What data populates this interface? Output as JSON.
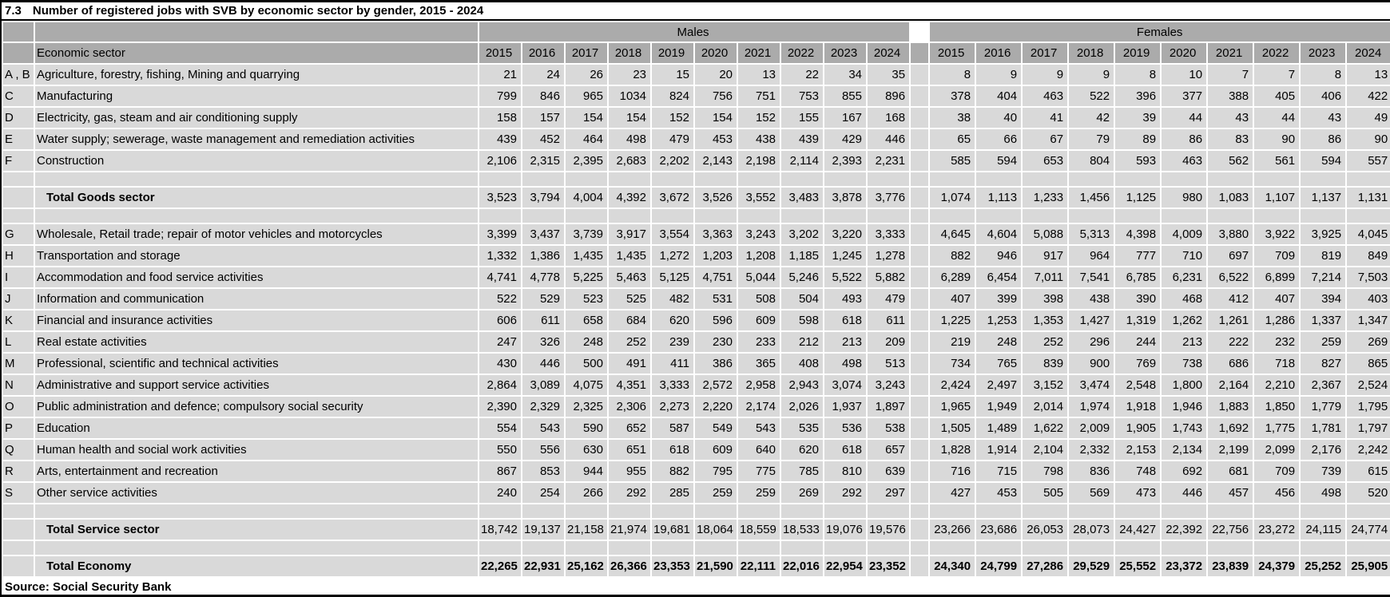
{
  "title": {
    "number": "7.3",
    "text": "Number of registered jobs with SVB by economic sector by gender, 2015 - 2024"
  },
  "source": "Source: Social Security Bank",
  "table": {
    "group_headers": {
      "males": "Males",
      "females": "Females"
    },
    "economic_sector_header": "Economic sector",
    "years": [
      "2015",
      "2016",
      "2017",
      "2018",
      "2019",
      "2020",
      "2021",
      "2022",
      "2023",
      "2024"
    ],
    "rows": [
      {
        "type": "data",
        "code": "A , B",
        "label": "Agriculture, forestry, fishing, Mining and quarrying",
        "males": [
          "21",
          "24",
          "26",
          "23",
          "15",
          "20",
          "13",
          "22",
          "34",
          "35"
        ],
        "females": [
          "8",
          "9",
          "9",
          "9",
          "8",
          "10",
          "7",
          "7",
          "8",
          "13"
        ]
      },
      {
        "type": "data",
        "code": "C",
        "label": "Manufacturing",
        "males": [
          "799",
          "846",
          "965",
          "1034",
          "824",
          "756",
          "751",
          "753",
          "855",
          "896"
        ],
        "females": [
          "378",
          "404",
          "463",
          "522",
          "396",
          "377",
          "388",
          "405",
          "406",
          "422"
        ]
      },
      {
        "type": "data",
        "code": "D",
        "label": "Electricity, gas, steam and air conditioning supply",
        "males": [
          "158",
          "157",
          "154",
          "154",
          "152",
          "154",
          "152",
          "155",
          "167",
          "168"
        ],
        "females": [
          "38",
          "40",
          "41",
          "42",
          "39",
          "44",
          "43",
          "44",
          "43",
          "49"
        ]
      },
      {
        "type": "data",
        "code": "E",
        "label": "Water supply; sewerage, waste management and remediation activities",
        "males": [
          "439",
          "452",
          "464",
          "498",
          "479",
          "453",
          "438",
          "439",
          "429",
          "446"
        ],
        "females": [
          "65",
          "66",
          "67",
          "79",
          "89",
          "86",
          "83",
          "90",
          "86",
          "90"
        ]
      },
      {
        "type": "data",
        "code": "F",
        "label": "Construction",
        "males": [
          "2,106",
          "2,315",
          "2,395",
          "2,683",
          "2,202",
          "2,143",
          "2,198",
          "2,114",
          "2,393",
          "2,231"
        ],
        "females": [
          "585",
          "594",
          "653",
          "804",
          "593",
          "463",
          "562",
          "561",
          "594",
          "557"
        ]
      },
      {
        "type": "spacer"
      },
      {
        "type": "total",
        "code": "",
        "label": "Total Goods sector",
        "males": [
          "3,523",
          "3,794",
          "4,004",
          "4,392",
          "3,672",
          "3,526",
          "3,552",
          "3,483",
          "3,878",
          "3,776"
        ],
        "females": [
          "1,074",
          "1,113",
          "1,233",
          "1,456",
          "1,125",
          "980",
          "1,083",
          "1,107",
          "1,137",
          "1,131"
        ]
      },
      {
        "type": "spacer"
      },
      {
        "type": "data",
        "code": "G",
        "label": "Wholesale, Retail trade; repair of motor vehicles and motorcycles",
        "males": [
          "3,399",
          "3,437",
          "3,739",
          "3,917",
          "3,554",
          "3,363",
          "3,243",
          "3,202",
          "3,220",
          "3,333"
        ],
        "females": [
          "4,645",
          "4,604",
          "5,088",
          "5,313",
          "4,398",
          "4,009",
          "3,880",
          "3,922",
          "3,925",
          "4,045"
        ]
      },
      {
        "type": "data",
        "code": "H",
        "label": "Transportation and storage",
        "males": [
          "1,332",
          "1,386",
          "1,435",
          "1,435",
          "1,272",
          "1,203",
          "1,208",
          "1,185",
          "1,245",
          "1,278"
        ],
        "females": [
          "882",
          "946",
          "917",
          "964",
          "777",
          "710",
          "697",
          "709",
          "819",
          "849"
        ]
      },
      {
        "type": "data",
        "code": "I",
        "label": "Accommodation and food service activities",
        "males": [
          "4,741",
          "4,778",
          "5,225",
          "5,463",
          "5,125",
          "4,751",
          "5,044",
          "5,246",
          "5,522",
          "5,882"
        ],
        "females": [
          "6,289",
          "6,454",
          "7,011",
          "7,541",
          "6,785",
          "6,231",
          "6,522",
          "6,899",
          "7,214",
          "7,503"
        ]
      },
      {
        "type": "data",
        "code": "J",
        "label": "Information and communication",
        "males": [
          "522",
          "529",
          "523",
          "525",
          "482",
          "531",
          "508",
          "504",
          "493",
          "479"
        ],
        "females": [
          "407",
          "399",
          "398",
          "438",
          "390",
          "468",
          "412",
          "407",
          "394",
          "403"
        ]
      },
      {
        "type": "data",
        "code": "K",
        "label": "Financial and insurance activities",
        "males": [
          "606",
          "611",
          "658",
          "684",
          "620",
          "596",
          "609",
          "598",
          "618",
          "611"
        ],
        "females": [
          "1,225",
          "1,253",
          "1,353",
          "1,427",
          "1,319",
          "1,262",
          "1,261",
          "1,286",
          "1,337",
          "1,347"
        ]
      },
      {
        "type": "data",
        "code": "L",
        "label": "Real estate activities",
        "males": [
          "247",
          "326",
          "248",
          "252",
          "239",
          "230",
          "233",
          "212",
          "213",
          "209"
        ],
        "females": [
          "219",
          "248",
          "252",
          "296",
          "244",
          "213",
          "222",
          "232",
          "259",
          "269"
        ]
      },
      {
        "type": "data",
        "code": "M",
        "label": "Professional, scientific and technical activities",
        "males": [
          "430",
          "446",
          "500",
          "491",
          "411",
          "386",
          "365",
          "408",
          "498",
          "513"
        ],
        "females": [
          "734",
          "765",
          "839",
          "900",
          "769",
          "738",
          "686",
          "718",
          "827",
          "865"
        ]
      },
      {
        "type": "data",
        "code": "N",
        "label": "Administrative and support service activities",
        "males": [
          "2,864",
          "3,089",
          "4,075",
          "4,351",
          "3,333",
          "2,572",
          "2,958",
          "2,943",
          "3,074",
          "3,243"
        ],
        "females": [
          "2,424",
          "2,497",
          "3,152",
          "3,474",
          "2,548",
          "1,800",
          "2,164",
          "2,210",
          "2,367",
          "2,524"
        ]
      },
      {
        "type": "data",
        "code": "O",
        "label": "Public administration and defence; compulsory social security",
        "males": [
          "2,390",
          "2,329",
          "2,325",
          "2,306",
          "2,273",
          "2,220",
          "2,174",
          "2,026",
          "1,937",
          "1,897"
        ],
        "females": [
          "1,965",
          "1,949",
          "2,014",
          "1,974",
          "1,918",
          "1,946",
          "1,883",
          "1,850",
          "1,779",
          "1,795"
        ]
      },
      {
        "type": "data",
        "code": "P",
        "label": "Education",
        "males": [
          "554",
          "543",
          "590",
          "652",
          "587",
          "549",
          "543",
          "535",
          "536",
          "538"
        ],
        "females": [
          "1,505",
          "1,489",
          "1,622",
          "2,009",
          "1,905",
          "1,743",
          "1,692",
          "1,775",
          "1,781",
          "1,797"
        ]
      },
      {
        "type": "data",
        "code": "Q",
        "label": "Human health and social work activities",
        "males": [
          "550",
          "556",
          "630",
          "651",
          "618",
          "609",
          "640",
          "620",
          "618",
          "657"
        ],
        "females": [
          "1,828",
          "1,914",
          "2,104",
          "2,332",
          "2,153",
          "2,134",
          "2,199",
          "2,099",
          "2,176",
          "2,242"
        ]
      },
      {
        "type": "data",
        "code": "R",
        "label": "Arts, entertainment and recreation",
        "males": [
          "867",
          "853",
          "944",
          "955",
          "882",
          "795",
          "775",
          "785",
          "810",
          "639"
        ],
        "females": [
          "716",
          "715",
          "798",
          "836",
          "748",
          "692",
          "681",
          "709",
          "739",
          "615"
        ]
      },
      {
        "type": "data",
        "code": "S",
        "label": "Other service activities",
        "males": [
          "240",
          "254",
          "266",
          "292",
          "285",
          "259",
          "259",
          "269",
          "292",
          "297"
        ],
        "females": [
          "427",
          "453",
          "505",
          "569",
          "473",
          "446",
          "457",
          "456",
          "498",
          "520"
        ]
      },
      {
        "type": "spacer"
      },
      {
        "type": "total",
        "code": "",
        "label": "Total Service sector",
        "males": [
          "18,742",
          "19,137",
          "21,158",
          "21,974",
          "19,681",
          "18,064",
          "18,559",
          "18,533",
          "19,076",
          "19,576"
        ],
        "females": [
          "23,266",
          "23,686",
          "26,053",
          "28,073",
          "24,427",
          "22,392",
          "22,756",
          "23,272",
          "24,115",
          "24,774"
        ]
      },
      {
        "type": "spacer"
      },
      {
        "type": "total_bold",
        "code": "",
        "label": "Total Economy",
        "males": [
          "22,265",
          "22,931",
          "25,162",
          "26,366",
          "23,353",
          "21,590",
          "22,111",
          "22,016",
          "22,954",
          "23,352"
        ],
        "females": [
          "24,340",
          "24,799",
          "27,286",
          "29,529",
          "25,552",
          "23,372",
          "23,839",
          "24,379",
          "25,252",
          "25,905"
        ]
      }
    ]
  },
  "colors": {
    "header_gray": "#ababab",
    "cell_gray": "#d9d9d9",
    "gridline": "#ffffff",
    "frame_border": "#000000"
  }
}
